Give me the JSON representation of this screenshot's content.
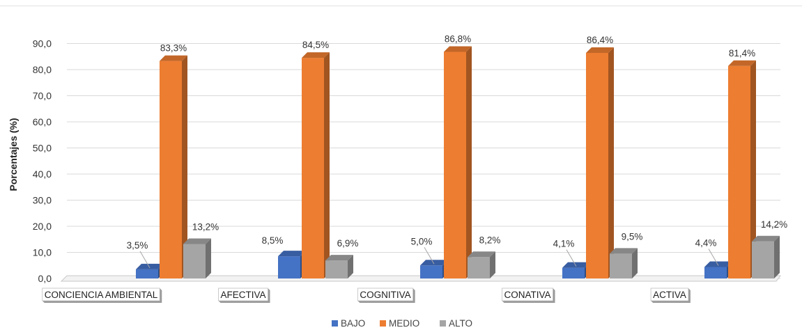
{
  "chart_data": {
    "type": "bar",
    "style": "3d-clustered-column",
    "title": "",
    "xlabel": "",
    "ylabel": "Porcentajes (%)",
    "ylim": [
      0,
      90
    ],
    "yticks": [
      "0,0",
      "10,0",
      "20,0",
      "30,0",
      "40,0",
      "50,0",
      "60,0",
      "70,0",
      "80,0",
      "90,0"
    ],
    "grid": true,
    "legend_position": "bottom",
    "categories": [
      "CONCIENCIA AMBIENTAL",
      "AFECTIVA",
      "COGNITIVA",
      "CONATIVA",
      "ACTIVA"
    ],
    "series": [
      {
        "name": "BAJO",
        "color": "#4472c4",
        "values": [
          3.5,
          8.5,
          5.0,
          4.1,
          4.4
        ],
        "labels": [
          "3,5%",
          "8,5%",
          "5,0%",
          "4,1%",
          "4,4%"
        ]
      },
      {
        "name": "MEDIO",
        "color": "#ed7d31",
        "values": [
          83.3,
          84.5,
          86.8,
          86.4,
          81.4
        ],
        "labels": [
          "83,3%",
          "84,5%",
          "86,8%",
          "86,4%",
          "81,4%"
        ]
      },
      {
        "name": "ALTO",
        "color": "#a5a5a5",
        "values": [
          13.2,
          6.9,
          8.2,
          9.5,
          14.2
        ],
        "labels": [
          "13,2%",
          "6,9%",
          "8,2%",
          "9,5%",
          "14,2%"
        ]
      }
    ]
  }
}
